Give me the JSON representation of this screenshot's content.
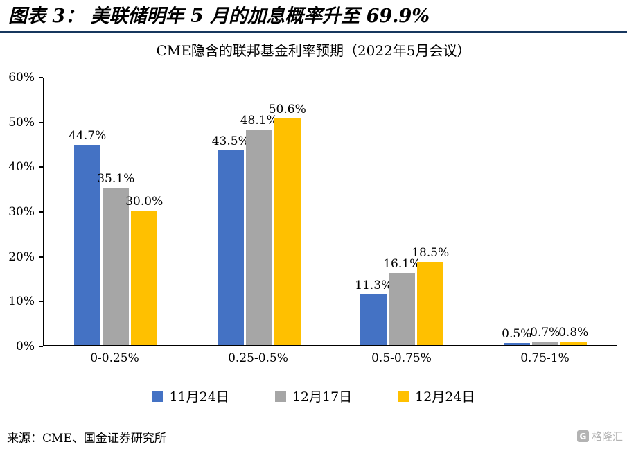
{
  "header": {
    "title": "图表 3：  美联储明年 5 月的加息概率升至 69.9%"
  },
  "chart_data": {
    "type": "bar",
    "title": "CME隐含的联邦基金利率预期（2022年5月会议）",
    "categories": [
      "0-0.25%",
      "0.25-0.5%",
      "0.5-0.75%",
      "0.75-1%"
    ],
    "series": [
      {
        "name": "11月24日",
        "color": "#4472C4",
        "values": [
          44.7,
          43.5,
          11.3,
          0.5
        ]
      },
      {
        "name": "12月17日",
        "color": "#A6A6A6",
        "values": [
          35.1,
          48.1,
          16.1,
          0.7
        ]
      },
      {
        "name": "12月24日",
        "color": "#FFC000",
        "values": [
          30.0,
          50.6,
          18.5,
          0.8
        ]
      }
    ],
    "ylim": [
      0,
      60
    ],
    "ytick_step": 10,
    "ytick_labels": [
      "0%",
      "10%",
      "20%",
      "30%",
      "40%",
      "50%",
      "60%"
    ],
    "value_suffix": "%",
    "legend_position": "bottom",
    "grid": false
  },
  "footer": {
    "source": "来源：CME、国金证券研究所"
  },
  "watermark": {
    "logo_icon": "G",
    "logo_text": "格隆汇"
  }
}
